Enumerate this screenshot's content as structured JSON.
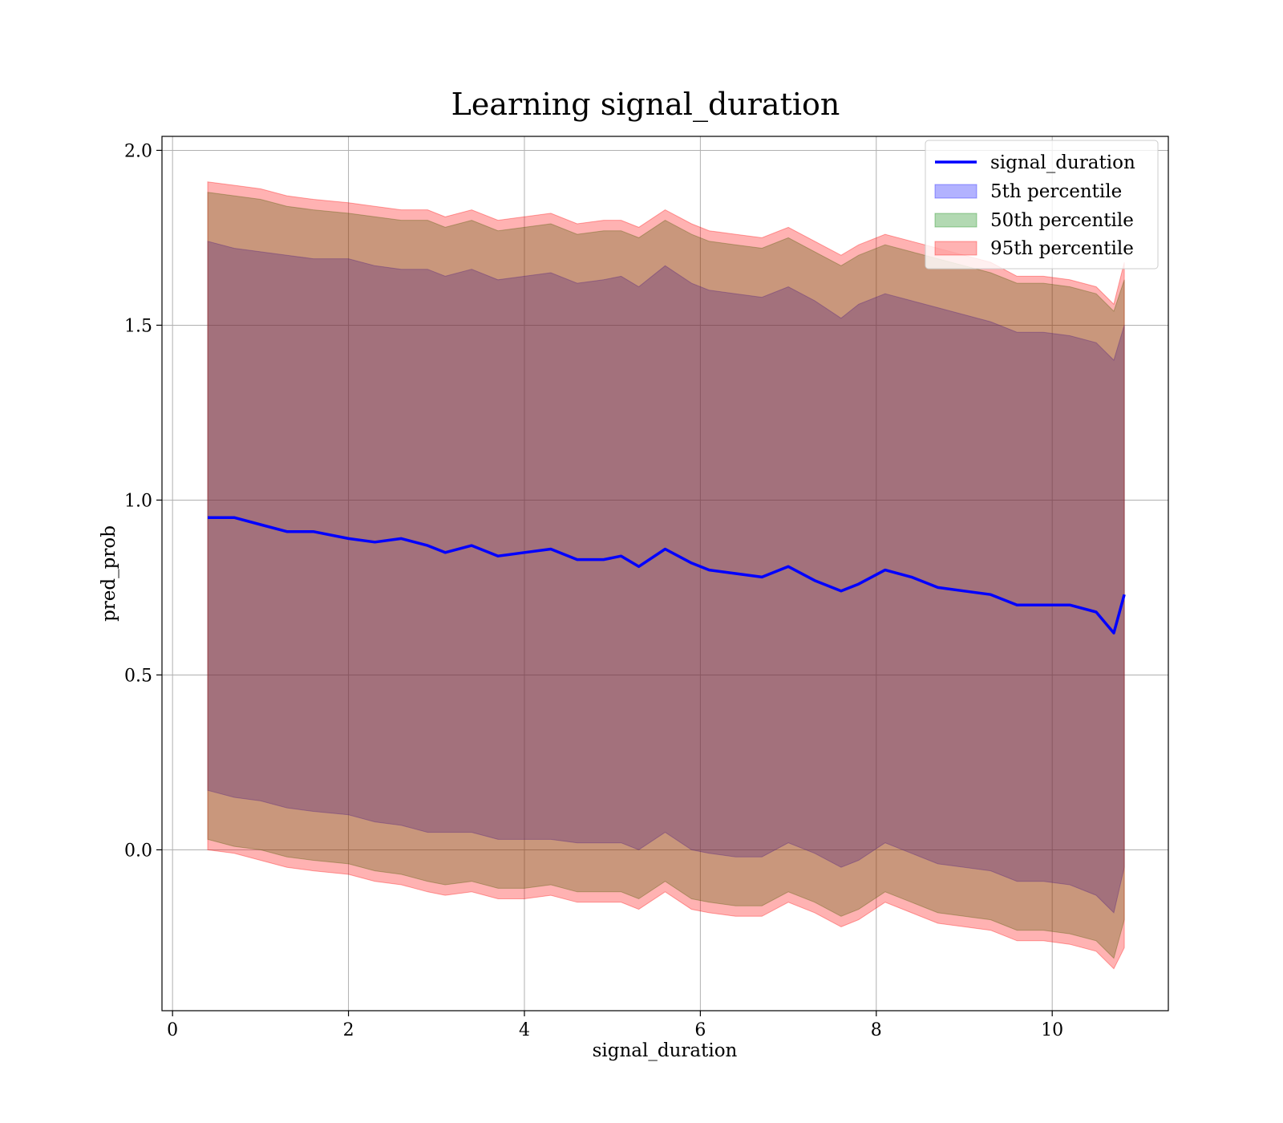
{
  "chart_data": {
    "type": "area",
    "title": "Learning signal_duration",
    "xlabel": "signal_duration",
    "ylabel": "pred_prob",
    "xlim": [
      -0.12,
      11.32
    ],
    "ylim": [
      -0.46,
      2.04
    ],
    "xticks": [
      0,
      2,
      4,
      6,
      8,
      10
    ],
    "yticks": [
      0.0,
      0.5,
      1.0,
      1.5,
      2.0
    ],
    "xtick_labels": [
      "0",
      "2",
      "4",
      "6",
      "8",
      "10"
    ],
    "ytick_labels": [
      "0.0",
      "0.5",
      "1.0",
      "1.5",
      "2.0"
    ],
    "grid": true,
    "legend_position": "top-right",
    "x": [
      0.4,
      0.7,
      1.0,
      1.3,
      1.6,
      2.0,
      2.3,
      2.6,
      2.9,
      3.1,
      3.4,
      3.7,
      4.0,
      4.3,
      4.6,
      4.9,
      5.1,
      5.3,
      5.6,
      5.9,
      6.1,
      6.4,
      6.7,
      7.0,
      7.3,
      7.6,
      7.8,
      8.1,
      8.4,
      8.7,
      9.0,
      9.3,
      9.6,
      9.9,
      10.2,
      10.5,
      10.7,
      10.82
    ],
    "series": [
      {
        "name": "signal_duration",
        "kind": "line",
        "color": "#0000ff",
        "values": [
          0.95,
          0.95,
          0.93,
          0.91,
          0.91,
          0.89,
          0.88,
          0.89,
          0.87,
          0.85,
          0.87,
          0.84,
          0.85,
          0.86,
          0.83,
          0.83,
          0.84,
          0.81,
          0.86,
          0.82,
          0.8,
          0.79,
          0.78,
          0.81,
          0.77,
          0.74,
          0.76,
          0.8,
          0.78,
          0.75,
          0.74,
          0.73,
          0.7,
          0.7,
          0.7,
          0.68,
          0.62,
          0.73
        ]
      },
      {
        "name": "5th percentile",
        "kind": "band",
        "color": "#0000ff",
        "lower": [
          0.17,
          0.15,
          0.14,
          0.12,
          0.11,
          0.1,
          0.08,
          0.07,
          0.05,
          0.05,
          0.05,
          0.03,
          0.03,
          0.03,
          0.02,
          0.02,
          0.02,
          0.0,
          0.05,
          0.0,
          -0.01,
          -0.02,
          -0.02,
          0.02,
          -0.01,
          -0.05,
          -0.03,
          0.02,
          -0.01,
          -0.04,
          -0.05,
          -0.06,
          -0.09,
          -0.09,
          -0.1,
          -0.13,
          -0.18,
          -0.05
        ],
        "upper": [
          1.74,
          1.72,
          1.71,
          1.7,
          1.69,
          1.69,
          1.67,
          1.66,
          1.66,
          1.64,
          1.66,
          1.63,
          1.64,
          1.65,
          1.62,
          1.63,
          1.64,
          1.61,
          1.67,
          1.62,
          1.6,
          1.59,
          1.58,
          1.61,
          1.57,
          1.52,
          1.56,
          1.59,
          1.57,
          1.55,
          1.53,
          1.51,
          1.48,
          1.48,
          1.47,
          1.45,
          1.4,
          1.5
        ]
      },
      {
        "name": "50th percentile",
        "kind": "band",
        "color": "#008000",
        "lower": [
          0.03,
          0.01,
          0.0,
          -0.02,
          -0.03,
          -0.04,
          -0.06,
          -0.07,
          -0.09,
          -0.1,
          -0.09,
          -0.11,
          -0.11,
          -0.1,
          -0.12,
          -0.12,
          -0.12,
          -0.14,
          -0.09,
          -0.14,
          -0.15,
          -0.16,
          -0.16,
          -0.12,
          -0.15,
          -0.19,
          -0.17,
          -0.12,
          -0.15,
          -0.18,
          -0.19,
          -0.2,
          -0.23,
          -0.23,
          -0.24,
          -0.26,
          -0.31,
          -0.2
        ],
        "upper": [
          1.88,
          1.87,
          1.86,
          1.84,
          1.83,
          1.82,
          1.81,
          1.8,
          1.8,
          1.78,
          1.8,
          1.77,
          1.78,
          1.79,
          1.76,
          1.77,
          1.77,
          1.75,
          1.8,
          1.76,
          1.74,
          1.73,
          1.72,
          1.75,
          1.71,
          1.67,
          1.7,
          1.73,
          1.71,
          1.69,
          1.67,
          1.65,
          1.62,
          1.62,
          1.61,
          1.59,
          1.54,
          1.63
        ]
      },
      {
        "name": "95th percentile",
        "kind": "band",
        "color": "#ff0000",
        "lower": [
          0.0,
          -0.01,
          -0.03,
          -0.05,
          -0.06,
          -0.07,
          -0.09,
          -0.1,
          -0.12,
          -0.13,
          -0.12,
          -0.14,
          -0.14,
          -0.13,
          -0.15,
          -0.15,
          -0.15,
          -0.17,
          -0.12,
          -0.17,
          -0.18,
          -0.19,
          -0.19,
          -0.15,
          -0.18,
          -0.22,
          -0.2,
          -0.15,
          -0.18,
          -0.21,
          -0.22,
          -0.23,
          -0.26,
          -0.26,
          -0.27,
          -0.29,
          -0.34,
          -0.28
        ],
        "upper": [
          1.91,
          1.9,
          1.89,
          1.87,
          1.86,
          1.85,
          1.84,
          1.83,
          1.83,
          1.81,
          1.83,
          1.8,
          1.81,
          1.82,
          1.79,
          1.8,
          1.8,
          1.78,
          1.83,
          1.79,
          1.77,
          1.76,
          1.75,
          1.78,
          1.74,
          1.7,
          1.73,
          1.76,
          1.74,
          1.72,
          1.7,
          1.68,
          1.64,
          1.64,
          1.63,
          1.61,
          1.56,
          1.68
        ]
      }
    ]
  }
}
